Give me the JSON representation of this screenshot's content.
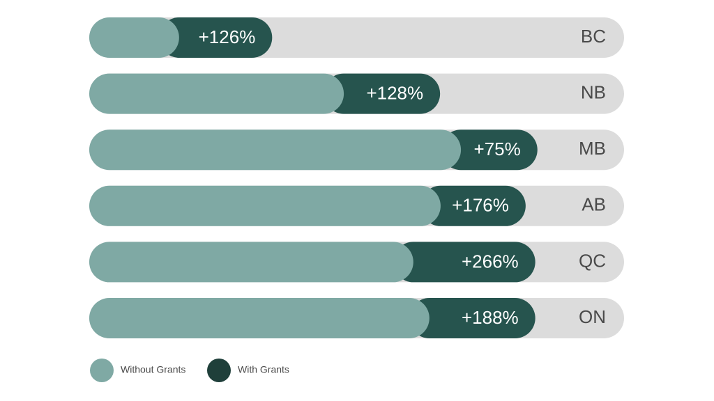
{
  "chart_data": {
    "type": "bar",
    "orientation": "horizontal",
    "stacked": true,
    "categories": [
      "BC",
      "NB",
      "MB",
      "AB",
      "QC",
      "ON"
    ],
    "series": [
      {
        "name": "Without Grants",
        "color": "#7fa9a4",
        "values": [
          16.8,
          47.6,
          69.5,
          65.7,
          60.6,
          63.6
        ]
      },
      {
        "name": "With Grants",
        "color": "#26544e",
        "values": [
          17.4,
          18.0,
          14.3,
          15.9,
          22.8,
          19.8
        ]
      }
    ],
    "annotations": [
      "+126%",
      "+128%",
      "+75%",
      "+176%",
      "+266%",
      "+188%"
    ],
    "xlim": [
      0,
      100
    ],
    "track_color": "#dcdcdc",
    "legend": "bottom-left"
  }
}
